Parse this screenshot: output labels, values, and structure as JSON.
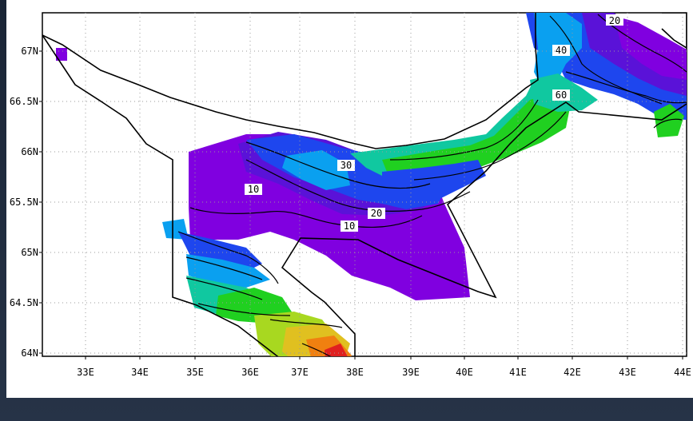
{
  "map": {
    "lat_labels": [
      "67N",
      "66.5N",
      "66N",
      "65.5N",
      "65N",
      "64.5N",
      "64N"
    ],
    "lon_labels": [
      "33E",
      "34E",
      "35E",
      "36E",
      "37E",
      "38E",
      "39E",
      "40E",
      "41E",
      "42E",
      "43E",
      "44E"
    ],
    "contour_labels": [
      "20",
      "40",
      "60",
      "30",
      "10",
      "20",
      "10"
    ],
    "colors": {
      "purple": "#8000e0",
      "violet": "#5a12d8",
      "blue": "#1e46ee",
      "sky": "#0aa0f0",
      "teal": "#10c8a0",
      "green": "#20d020",
      "lime": "#a8d820",
      "yellow": "#e0c020",
      "orange": "#f08010",
      "red": "#e02020"
    }
  }
}
